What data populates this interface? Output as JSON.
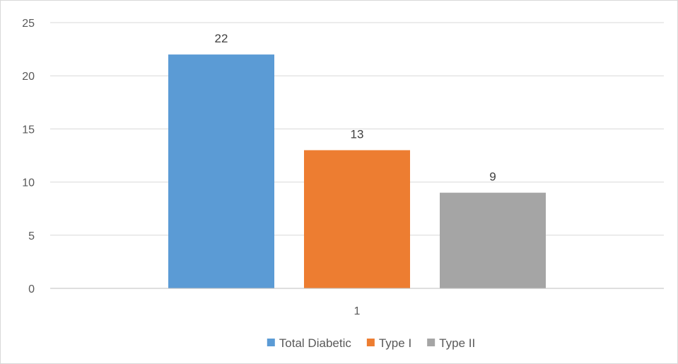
{
  "chart_data": {
    "type": "bar",
    "categories": [
      "1"
    ],
    "series": [
      {
        "name": "Total Diabetic",
        "values": [
          22
        ],
        "color": "#5b9bd5"
      },
      {
        "name": "Type I",
        "values": [
          13
        ],
        "color": "#ed7d31"
      },
      {
        "name": "Type II",
        "values": [
          9
        ],
        "color": "#a5a5a5"
      }
    ],
    "ylim": [
      0,
      25
    ],
    "yticks": [
      0,
      5,
      10,
      15,
      20,
      25
    ],
    "grid": true,
    "data_labels": true,
    "legend_position": "bottom",
    "gridline_color": "#d9d9d9",
    "axis_color": "#bfbfbf"
  }
}
